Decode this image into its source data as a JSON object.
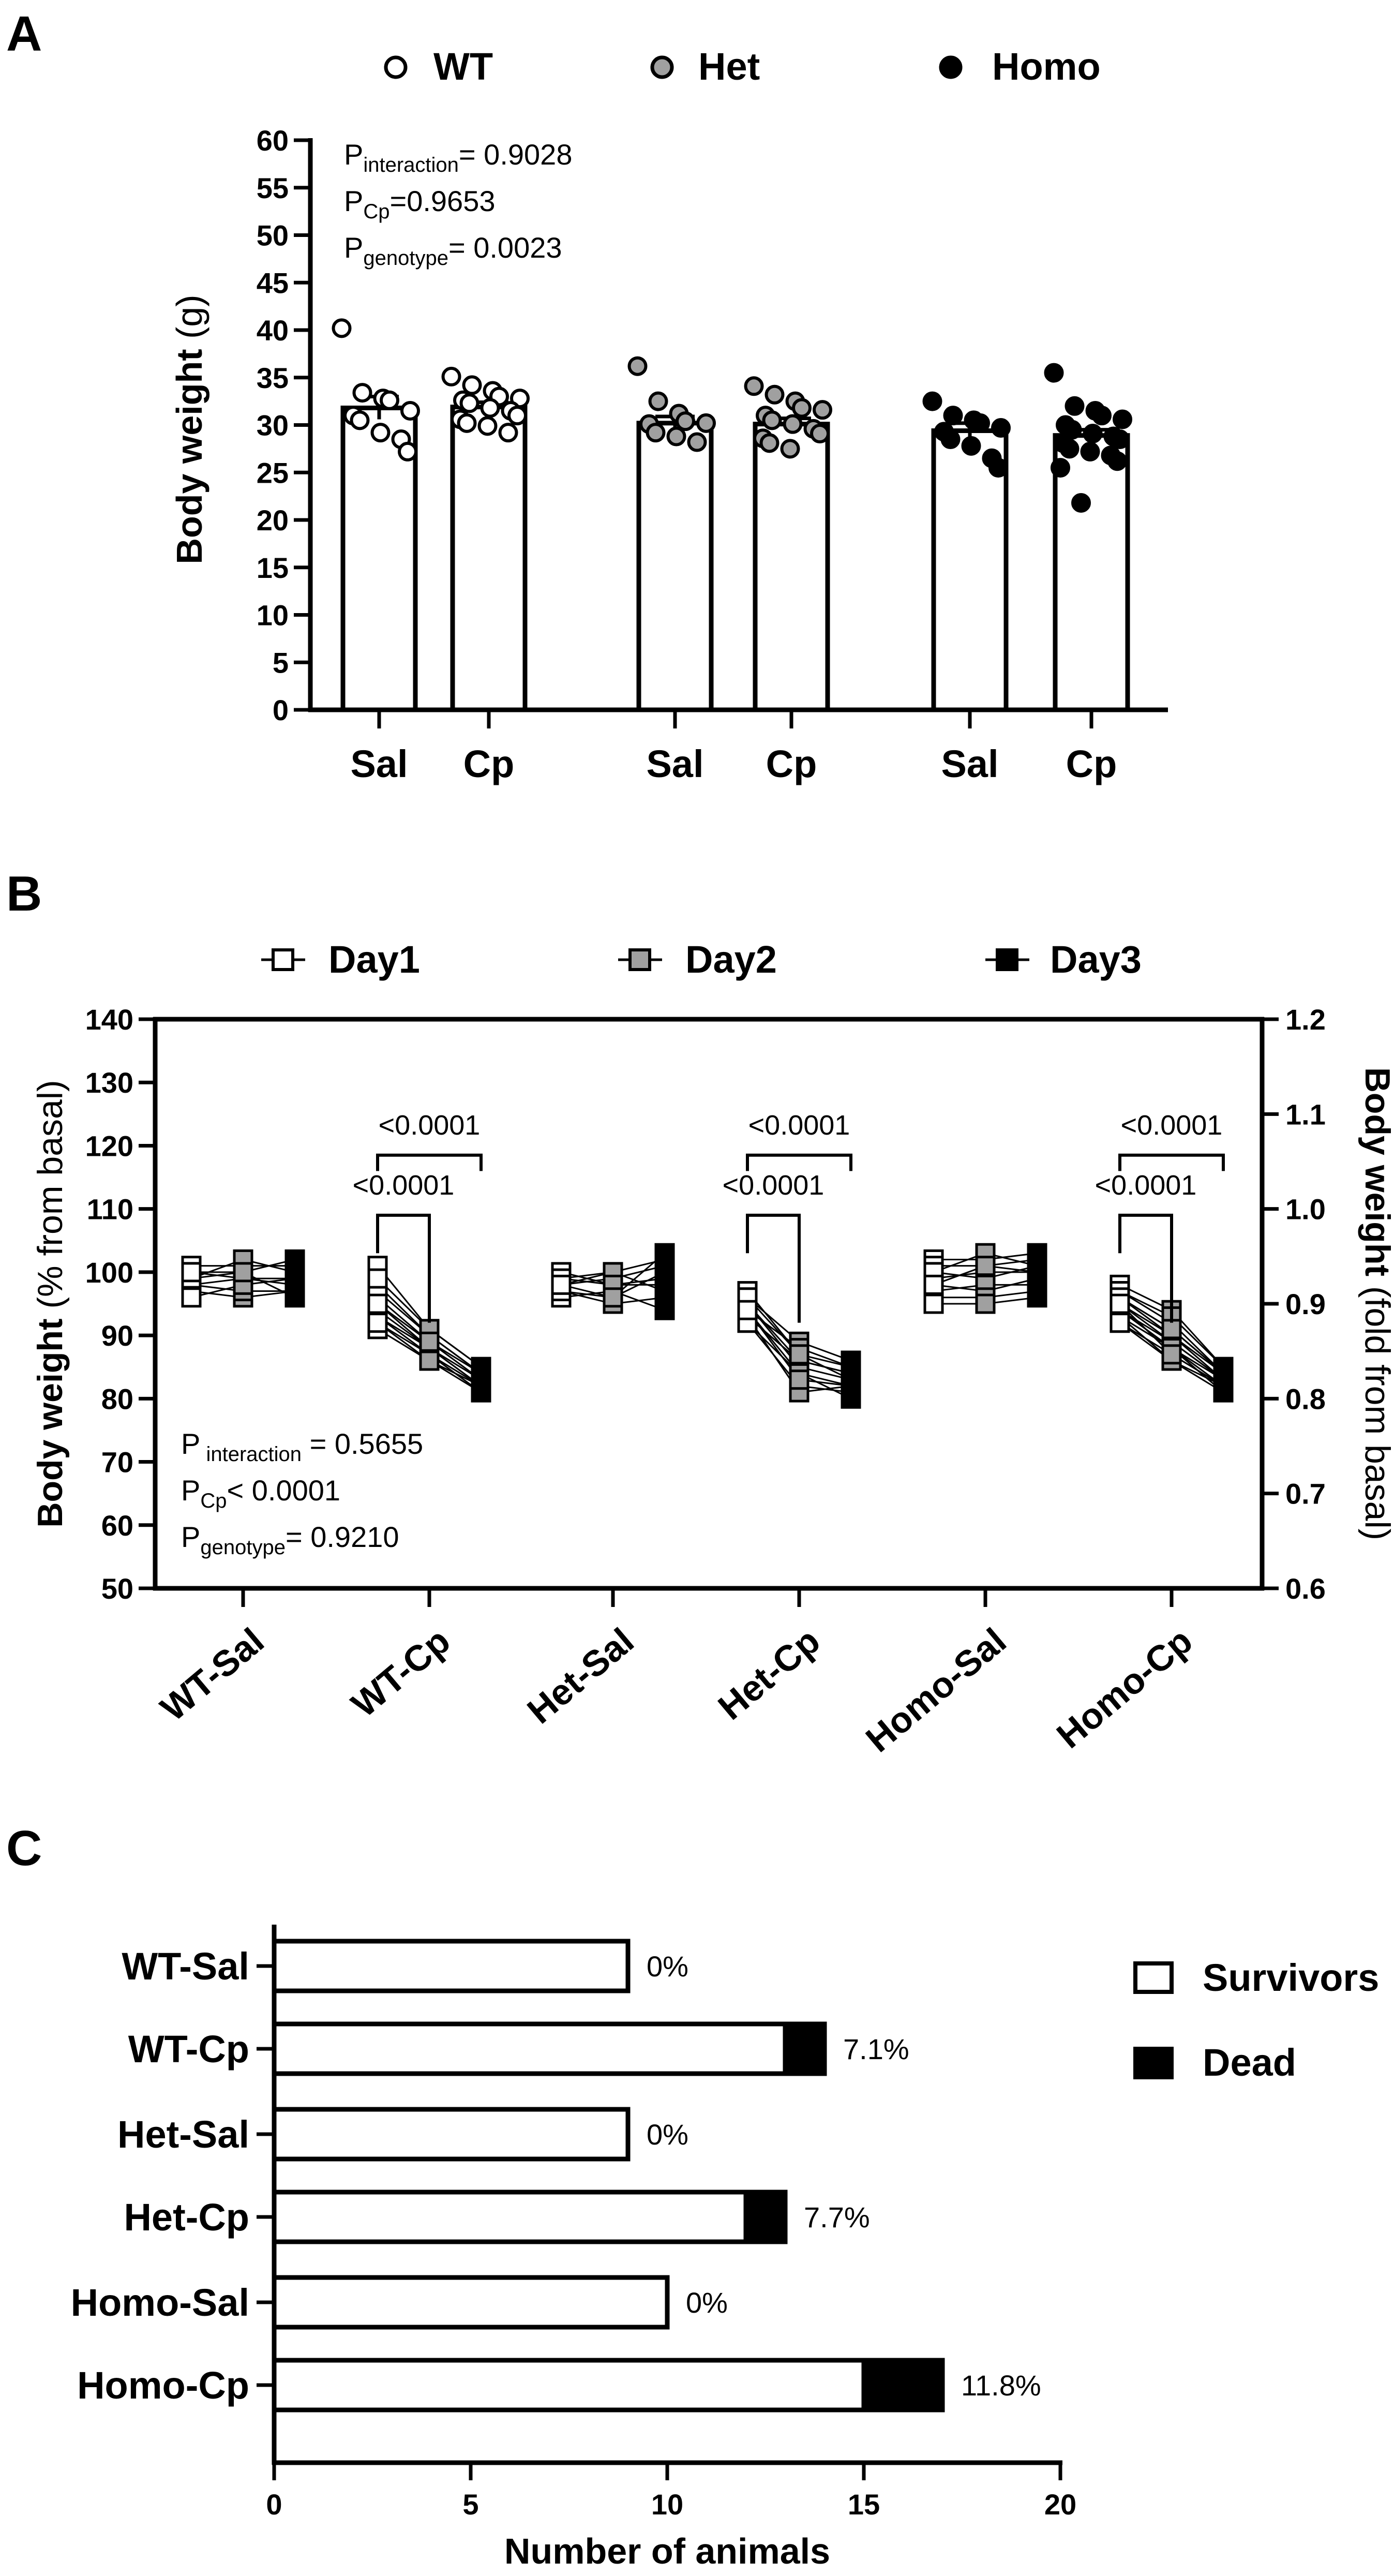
{
  "panel_a": {
    "letter": "A",
    "legend": [
      {
        "label": "WT",
        "fill": "#ffffff"
      },
      {
        "label": "Het",
        "fill": "#a0a0a0"
      },
      {
        "label": "Homo",
        "fill": "#000000"
      }
    ],
    "ylabel_main": "Body weight",
    "ylabel_unit": " (g)",
    "stats": [
      {
        "pre": "P",
        "sub": "interaction",
        "post": "= 0.9028"
      },
      {
        "pre": "P",
        "sub": "Cp",
        "post": "=0.9653"
      },
      {
        "pre": "P",
        "sub": "genotype",
        "post": "= 0.0023"
      }
    ]
  },
  "panel_b": {
    "letter": "B",
    "legend": [
      {
        "label": "Day1",
        "fill": "#ffffff"
      },
      {
        "label": "Day2",
        "fill": "#a0a0a0"
      },
      {
        "label": "Day3",
        "fill": "#000000"
      }
    ],
    "ylabel_left_main": "Body weight",
    "ylabel_left_unit": " (% from basal)",
    "ylabel_right_main": "Body weight",
    "ylabel_right_unit": " (fold from basal)",
    "stats": [
      {
        "pre": "P",
        "sub": " interaction",
        "post": " = 0.5655"
      },
      {
        "pre": "P",
        "sub": "Cp",
        "post": "< 0.0001"
      },
      {
        "pre": "P",
        "sub": "genotype",
        "post": "= 0.9210"
      }
    ]
  },
  "panel_c": {
    "letter": "C",
    "legend": [
      {
        "label": "Survivors",
        "fill": "#ffffff"
      },
      {
        "label": "Dead",
        "fill": "#000000"
      }
    ],
    "xlabel": "Number of animals"
  },
  "chart_data": [
    {
      "panel": "A",
      "type": "bar",
      "ylabel": "Body weight (g)",
      "ylim": [
        0,
        60
      ],
      "yticks": [
        0,
        5,
        10,
        15,
        20,
        25,
        30,
        35,
        40,
        45,
        50,
        55,
        60
      ],
      "categories": [
        "Sal",
        "Cp",
        "Sal",
        "Cp",
        "Sal",
        "Cp"
      ],
      "groups": [
        "WT",
        "WT",
        "Het",
        "Het",
        "Homo",
        "Homo"
      ],
      "colors": [
        "#ffffff",
        "#ffffff",
        "#a0a0a0",
        "#a0a0a0",
        "#000000",
        "#000000"
      ],
      "values": [
        31.8,
        31.9,
        30.2,
        30.1,
        29.4,
        28.9
      ],
      "sem": [
        1.2,
        0.5,
        0.7,
        0.6,
        0.8,
        0.6
      ],
      "points": [
        [
          40.2,
          33.4,
          32.8,
          32.6,
          31.5,
          31.0,
          30.5,
          29.2,
          28.5,
          27.2
        ],
        [
          35.1,
          34.2,
          33.6,
          33.0,
          32.8,
          32.6,
          32.3,
          31.8,
          31.5,
          31.0,
          30.6,
          30.2,
          29.9,
          29.2
        ],
        [
          36.2,
          32.5,
          31.2,
          30.4,
          30.2,
          30.1,
          29.2,
          28.8,
          28.2
        ],
        [
          34.1,
          33.2,
          32.5,
          31.8,
          31.6,
          31.0,
          30.5,
          30.1,
          29.6,
          29.1,
          28.6,
          28.1,
          27.5
        ],
        [
          32.5,
          31.0,
          30.5,
          30.2,
          29.7,
          29.3,
          28.5,
          27.8,
          26.5,
          25.5
        ],
        [
          35.5,
          32.0,
          31.5,
          31.0,
          30.6,
          30.0,
          29.5,
          29.1,
          28.8,
          28.5,
          28.1,
          27.5,
          27.2,
          26.8,
          26.2,
          25.5,
          21.8
        ]
      ]
    },
    {
      "panel": "B",
      "type": "line",
      "ylabel": "Body weight (% from basal)",
      "ylim": [
        50,
        140
      ],
      "yticks": [
        50,
        60,
        70,
        80,
        90,
        100,
        110,
        120,
        130,
        140
      ],
      "y2label": "Body weight (fold from basal)",
      "y2lim": [
        0.6,
        1.2
      ],
      "y2ticks": [
        "0.6",
        "0.7",
        "0.8",
        "0.9",
        "1.0",
        "1.1",
        "1.2"
      ],
      "categories": [
        "WT-Sal",
        "WT-Cp",
        "Het-Sal",
        "Het-Cp",
        "Homo-Sal",
        "Homo-Cp"
      ],
      "series": [
        {
          "name": "Day1"
        },
        {
          "name": "Day2"
        },
        {
          "name": "Day3"
        }
      ],
      "subjects": [
        [
          [
            101,
            101,
            101
          ],
          [
            99,
            100,
            102
          ],
          [
            98,
            99,
            99
          ],
          [
            100,
            99,
            98
          ],
          [
            97,
            96,
            97
          ],
          [
            98,
            97,
            97
          ],
          [
            99,
            102,
            100
          ],
          [
            96,
            98,
            99
          ],
          [
            100,
            100,
            96
          ]
        ],
        [
          [
            101,
            91,
            85
          ],
          [
            98,
            90,
            84
          ],
          [
            96,
            89,
            83
          ],
          [
            95,
            88,
            83
          ],
          [
            94,
            88,
            82
          ],
          [
            93,
            87,
            82
          ],
          [
            92,
            87,
            81
          ],
          [
            91,
            86,
            81
          ],
          [
            97,
            90,
            84
          ],
          [
            99,
            91,
            85
          ],
          [
            93,
            88,
            82
          ],
          [
            95,
            89,
            84
          ],
          [
            92,
            86,
            82
          ]
        ],
        [
          [
            99,
            100,
            102
          ],
          [
            98,
            99,
            101
          ],
          [
            97,
            96,
            100
          ],
          [
            100,
            98,
            98
          ],
          [
            96,
            97,
            94
          ],
          [
            98,
            100,
            97
          ],
          [
            99,
            98,
            99
          ],
          [
            97,
            95,
            96
          ],
          [
            98,
            96,
            103
          ]
        ],
        [
          [
            97,
            87,
            85
          ],
          [
            95,
            85,
            83
          ],
          [
            94,
            84,
            82
          ],
          [
            93,
            86,
            84
          ],
          [
            92,
            82,
            81
          ],
          [
            96,
            89,
            86
          ],
          [
            94,
            88,
            85
          ],
          [
            93,
            81,
            82
          ],
          [
            95,
            86,
            84
          ],
          [
            92,
            84,
            80
          ],
          [
            96,
            87,
            83
          ],
          [
            94,
            83,
            82
          ]
        ],
        [
          [
            102,
            102,
            103
          ],
          [
            101,
            101,
            102
          ],
          [
            100,
            99,
            101
          ],
          [
            99,
            100,
            100
          ],
          [
            98,
            97,
            99
          ],
          [
            97,
            98,
            98
          ],
          [
            96,
            96,
            97
          ],
          [
            95,
            95,
            96
          ],
          [
            100,
            103,
            101
          ],
          [
            98,
            101,
            100
          ]
        ],
        [
          [
            98,
            94,
            85
          ],
          [
            97,
            92,
            84
          ],
          [
            96,
            91,
            84
          ],
          [
            95,
            90,
            83
          ],
          [
            94,
            89,
            83
          ],
          [
            93,
            88,
            82
          ],
          [
            92,
            87,
            82
          ],
          [
            94,
            88,
            81
          ],
          [
            96,
            90,
            84
          ],
          [
            97,
            93,
            85
          ],
          [
            95,
            89,
            83
          ],
          [
            93,
            86,
            82
          ],
          [
            94,
            88,
            83
          ],
          [
            92,
            86,
            81
          ],
          [
            96,
            91,
            84
          ],
          [
            95,
            87,
            82
          ]
        ]
      ],
      "comparisons": [
        {
          "group": 1,
          "from": 0,
          "to": 1,
          "label": "<0.0001"
        },
        {
          "group": 1,
          "from": 0,
          "to": 2,
          "label": "<0.0001"
        },
        {
          "group": 3,
          "from": 0,
          "to": 1,
          "label": "<0.0001"
        },
        {
          "group": 3,
          "from": 0,
          "to": 2,
          "label": "<0.0001"
        },
        {
          "group": 5,
          "from": 0,
          "to": 1,
          "label": "<0.0001"
        },
        {
          "group": 5,
          "from": 0,
          "to": 2,
          "label": "<0.0001"
        }
      ]
    },
    {
      "panel": "C",
      "type": "bar",
      "orientation": "horizontal",
      "stacked": true,
      "xlabel": "Number of animals",
      "xlim": [
        0,
        20
      ],
      "xticks": [
        0,
        5,
        10,
        15,
        20
      ],
      "categories": [
        "WT-Sal",
        "WT-Cp",
        "Het-Sal",
        "Het-Cp",
        "Homo-Sal",
        "Homo-Cp"
      ],
      "series": [
        {
          "name": "Survivors",
          "values": [
            9,
            13,
            9,
            12,
            10,
            15
          ]
        },
        {
          "name": "Dead",
          "values": [
            0,
            1,
            0,
            1,
            0,
            2
          ]
        }
      ],
      "labels": [
        "0%",
        "7.1%",
        "0%",
        "7.7%",
        "0%",
        "11.8%"
      ]
    }
  ]
}
